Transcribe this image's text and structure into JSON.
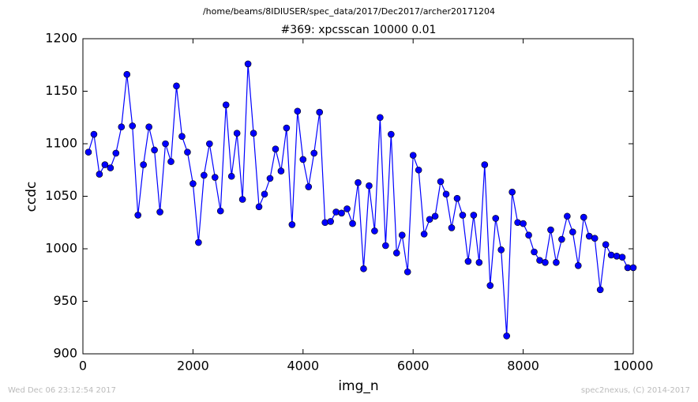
{
  "chart_data": {
    "type": "line",
    "suptitle": "/home/beams/8IDIUSER/spec_data/2017/Dec2017/archer20171204",
    "title": "#369: xpcsscan 10000 0.01",
    "x_label": "img_n",
    "y_label": "ccdc",
    "footer_left": "Wed Dec 06 23:12:54 2017",
    "footer_right": "spec2nexus, (C) 2014-2017",
    "x": [
      100,
      200,
      300,
      400,
      500,
      600,
      700,
      800,
      900,
      1000,
      1100,
      1200,
      1300,
      1400,
      1500,
      1600,
      1700,
      1800,
      1900,
      2000,
      2100,
      2200,
      2300,
      2400,
      2500,
      2600,
      2700,
      2800,
      2900,
      3000,
      3100,
      3200,
      3300,
      3400,
      3500,
      3600,
      3700,
      3800,
      3900,
      4000,
      4100,
      4200,
      4300,
      4400,
      4500,
      4600,
      4700,
      4800,
      4900,
      5000,
      5100,
      5200,
      5300,
      5400,
      5500,
      5600,
      5700,
      5800,
      5900,
      6000,
      6100,
      6200,
      6300,
      6400,
      6500,
      6600,
      6700,
      6800,
      6900,
      7000,
      7100,
      7200,
      7300,
      7400,
      7500,
      7600,
      7700,
      7800,
      7900,
      8000,
      8100,
      8200,
      8300,
      8400,
      8500,
      8600,
      8700,
      8800,
      8900,
      9000,
      9100,
      9200,
      9300,
      9400,
      9500,
      9600,
      9700,
      9800,
      9900,
      10000
    ],
    "series": [
      {
        "name": "ccdc",
        "color": "#0000ff",
        "values": [
          1092,
          1109,
          1071,
          1080,
          1077,
          1091,
          1116,
          1166,
          1117,
          1032,
          1080,
          1116,
          1094,
          1035,
          1100,
          1083,
          1155,
          1107,
          1092,
          1062,
          1006,
          1070,
          1100,
          1068,
          1036,
          1137,
          1069,
          1110,
          1047,
          1176,
          1110,
          1040,
          1052,
          1067,
          1095,
          1074,
          1115,
          1023,
          1131,
          1085,
          1059,
          1091,
          1130,
          1025,
          1026,
          1035,
          1034,
          1038,
          1024,
          1063,
          981,
          1060,
          1017,
          1125,
          1003,
          1109,
          996,
          1013,
          978,
          1089,
          1075,
          1014,
          1028,
          1031,
          1064,
          1052,
          1020,
          1048,
          1032,
          988,
          1032,
          987,
          1080,
          965,
          1029,
          999,
          917,
          1054,
          1025,
          1024,
          1013,
          997,
          989,
          987,
          1018,
          987,
          1009,
          1031,
          1016,
          984,
          1030,
          1012,
          1010,
          961,
          1004,
          994,
          993,
          992,
          982,
          982
        ]
      }
    ],
    "xlim": [
      0,
      10000
    ],
    "xticks": [
      0,
      2000,
      4000,
      6000,
      8000,
      10000
    ],
    "ylim": [
      900,
      1200
    ],
    "yticks": [
      900,
      950,
      1000,
      1050,
      1100,
      1150,
      1200
    ]
  }
}
